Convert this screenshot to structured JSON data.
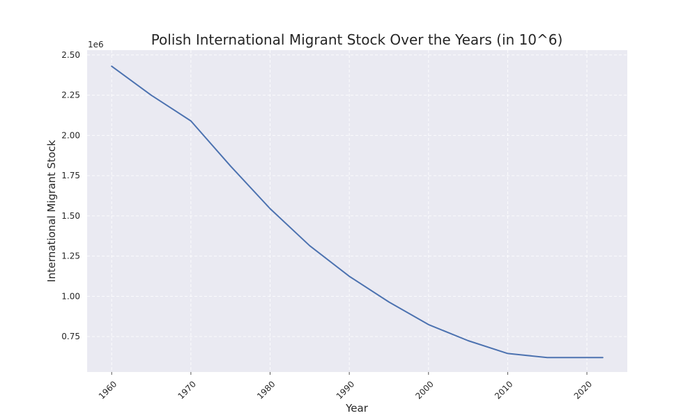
{
  "chart_data": {
    "type": "line",
    "title": "Polish International Migrant Stock Over the Years (in 10^6)",
    "xlabel": "Year",
    "ylabel": "International Migrant Stock",
    "y_offset_label": "1e6",
    "x": [
      1960,
      1965,
      1970,
      1975,
      1980,
      1985,
      1990,
      1995,
      2000,
      2005,
      2010,
      2015,
      2020,
      2022
    ],
    "series": [
      {
        "values": [
          2430000,
          2250000,
          2090000,
          1810000,
          1545000,
          1315000,
          1125000,
          965000,
          825000,
          725000,
          645000,
          620000,
          620000,
          620000
        ],
        "color": "#4c72b0"
      }
    ],
    "xlim": [
      1956.9,
      2025.1
    ],
    "ylim": [
      0.53,
      2.53
    ],
    "x_ticks": [
      1960,
      1970,
      1980,
      1990,
      2000,
      2010,
      2020
    ],
    "y_ticks": [
      0.75,
      1.0,
      1.25,
      1.5,
      1.75,
      2.0,
      2.25,
      2.5
    ],
    "y_tick_labels": [
      "0.75",
      "1.00",
      "1.25",
      "1.50",
      "1.75",
      "2.00",
      "2.25",
      "2.50"
    ],
    "grid": true,
    "background": "#eaeaf2"
  }
}
